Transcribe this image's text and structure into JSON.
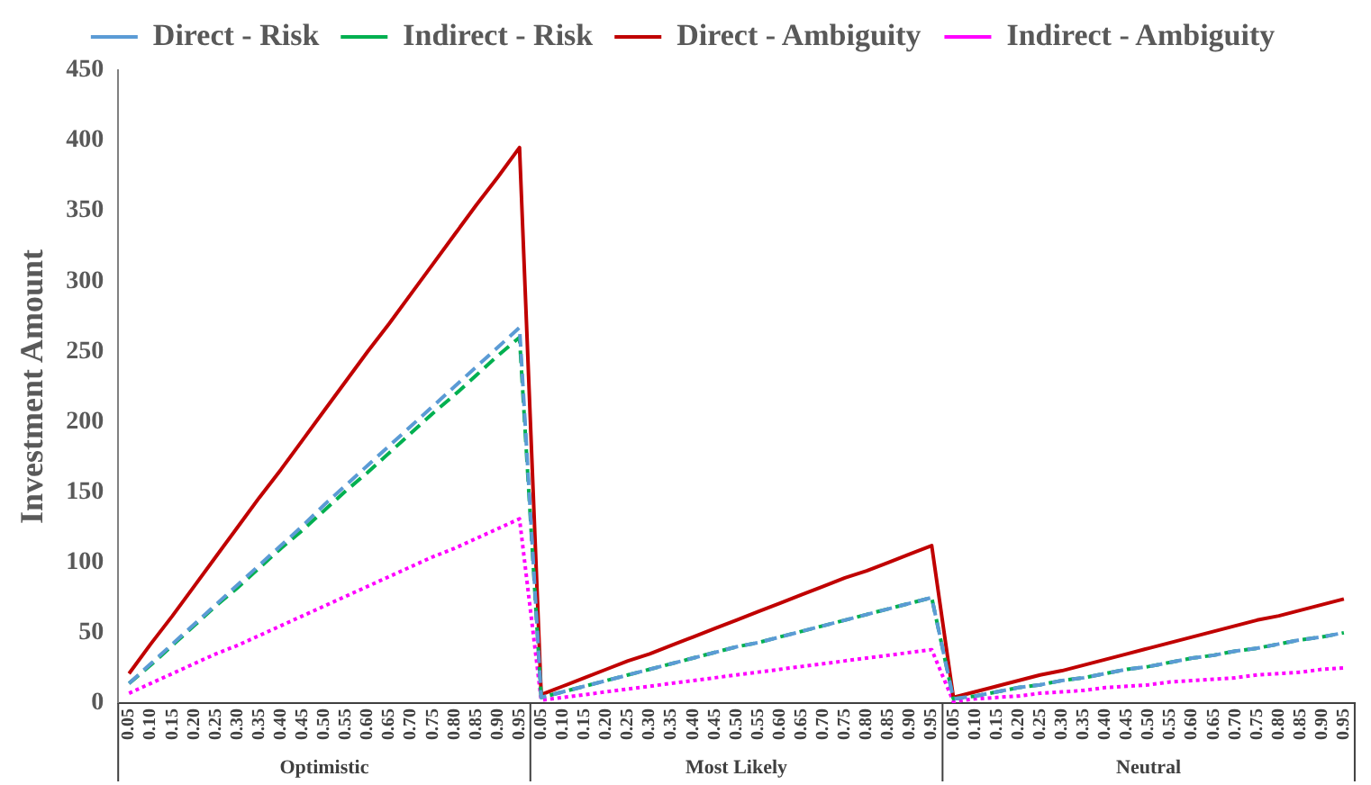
{
  "chart_data": {
    "type": "line",
    "ylabel": "Investment Amount",
    "categories": [
      "0.05",
      "0.10",
      "0.15",
      "0.20",
      "0.25",
      "0.30",
      "0.35",
      "0.40",
      "0.45",
      "0.50",
      "0.55",
      "0.60",
      "0.65",
      "0.70",
      "0.75",
      "0.80",
      "0.85",
      "0.90",
      "0.95",
      "0.05",
      "0.10",
      "0.15",
      "0.20",
      "0.25",
      "0.30",
      "0.35",
      "0.40",
      "0.45",
      "0.50",
      "0.55",
      "0.60",
      "0.65",
      "0.70",
      "0.75",
      "0.80",
      "0.85",
      "0.90",
      "0.95",
      "0.05",
      "0.10",
      "0.15",
      "0.20",
      "0.25",
      "0.30",
      "0.35",
      "0.40",
      "0.45",
      "0.50",
      "0.55",
      "0.60",
      "0.65",
      "0.70",
      "0.75",
      "0.80",
      "0.85",
      "0.90",
      "0.95"
    ],
    "annotations": [
      "Optimistic",
      "Most Likely",
      "Neutral"
    ],
    "series": [
      {
        "name": "Direct - Risk",
        "color": "#5b9bd5",
        "line_style": "dashed",
        "values": [
          14,
          28,
          42,
          56,
          70,
          84,
          98,
          112,
          126,
          141,
          155,
          169,
          183,
          197,
          211,
          225,
          239,
          253,
          267,
          4,
          8,
          12,
          16,
          20,
          24,
          28,
          32,
          36,
          40,
          43,
          47,
          51,
          55,
          59,
          63,
          67,
          71,
          75,
          3,
          5,
          8,
          11,
          13,
          16,
          18,
          21,
          24,
          26,
          29,
          32,
          34,
          37,
          39,
          42,
          45,
          47,
          50
        ]
      },
      {
        "name": "Indirect - Risk",
        "color": "#00b050",
        "line_style": "dashed",
        "values": [
          14,
          27,
          41,
          55,
          69,
          82,
          96,
          110,
          123,
          137,
          151,
          164,
          178,
          192,
          206,
          219,
          233,
          247,
          260,
          4,
          8,
          12,
          16,
          20,
          24,
          28,
          32,
          36,
          40,
          43,
          47,
          51,
          55,
          59,
          63,
          67,
          71,
          75,
          3,
          5,
          8,
          11,
          13,
          16,
          18,
          21,
          24,
          26,
          29,
          32,
          34,
          37,
          39,
          42,
          45,
          47,
          50
        ]
      },
      {
        "name": "Direct - Ambiguity",
        "color": "#c00000",
        "line_style": "solid",
        "values": [
          21,
          42,
          62,
          83,
          104,
          125,
          146,
          166,
          187,
          208,
          229,
          250,
          270,
          291,
          312,
          333,
          354,
          374,
          395,
          6,
          12,
          18,
          24,
          30,
          35,
          41,
          47,
          53,
          59,
          65,
          71,
          77,
          83,
          89,
          94,
          100,
          106,
          112,
          4,
          8,
          12,
          16,
          20,
          23,
          27,
          31,
          35,
          39,
          43,
          47,
          51,
          55,
          59,
          62,
          66,
          70,
          74
        ]
      },
      {
        "name": "Indirect - Ambiguity",
        "color": "#ff00ff",
        "line_style": "dotted",
        "values": [
          7,
          14,
          21,
          28,
          35,
          41,
          48,
          55,
          62,
          69,
          76,
          83,
          90,
          97,
          104,
          110,
          117,
          124,
          131,
          2,
          4,
          6,
          8,
          10,
          12,
          14,
          16,
          18,
          20,
          22,
          24,
          26,
          28,
          30,
          32,
          34,
          36,
          38,
          1,
          3,
          4,
          5,
          7,
          8,
          9,
          11,
          12,
          13,
          15,
          16,
          17,
          18,
          20,
          21,
          22,
          24,
          25
        ]
      }
    ],
    "ylim": [
      0,
      450
    ],
    "yticks": [
      0,
      50,
      100,
      150,
      200,
      250,
      300,
      350,
      400,
      450
    ],
    "grid": false,
    "legend": "top",
    "marker": "none"
  }
}
